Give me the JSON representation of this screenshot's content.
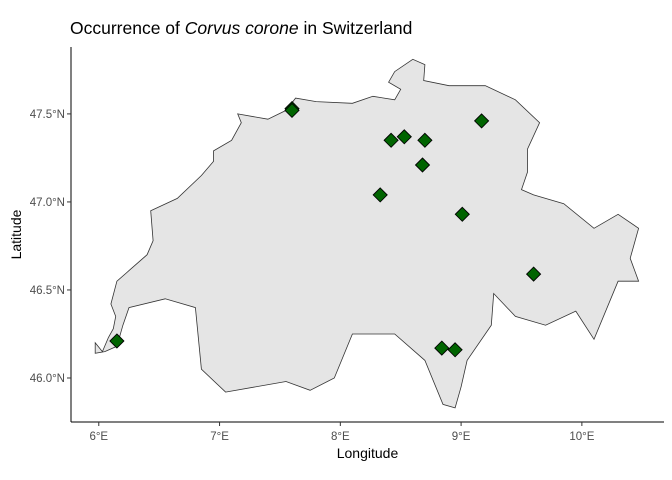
{
  "chart_data": {
    "type": "scatter",
    "title": {
      "prefix": "Occurrence of ",
      "species": "Corvus corone",
      "suffix": " in Switzerland"
    },
    "xlabel": "Longitude",
    "ylabel": "Latitude",
    "xlim": [
      5.77,
      10.68
    ],
    "ylim": [
      45.75,
      47.88
    ],
    "x_ticks": [
      {
        "value": 6,
        "label": "6°E"
      },
      {
        "value": 7,
        "label": "7°E"
      },
      {
        "value": 8,
        "label": "8°E"
      },
      {
        "value": 9,
        "label": "9°E"
      },
      {
        "value": 10,
        "label": "10°E"
      }
    ],
    "y_ticks": [
      {
        "value": 46.0,
        "label": "46.0°N"
      },
      {
        "value": 46.5,
        "label": "46.5°N"
      },
      {
        "value": 47.0,
        "label": "47.0°N"
      },
      {
        "value": 47.5,
        "label": "47.5°N"
      }
    ],
    "grid": false,
    "marker": {
      "shape": "diamond",
      "fill": "#006400",
      "stroke": "#000000"
    },
    "region_fill": "#e5e5e5",
    "region_stroke": "#333333",
    "points": [
      {
        "lon": 6.15,
        "lat": 46.21
      },
      {
        "lon": 7.6,
        "lat": 47.53
      },
      {
        "lon": 7.6,
        "lat": 47.52
      },
      {
        "lon": 8.42,
        "lat": 47.35
      },
      {
        "lon": 8.53,
        "lat": 47.37
      },
      {
        "lon": 8.7,
        "lat": 47.35
      },
      {
        "lon": 8.68,
        "lat": 47.21
      },
      {
        "lon": 9.17,
        "lat": 47.46
      },
      {
        "lon": 8.33,
        "lat": 47.04
      },
      {
        "lon": 9.01,
        "lat": 46.93
      },
      {
        "lon": 9.6,
        "lat": 46.59
      },
      {
        "lon": 8.84,
        "lat": 46.17
      },
      {
        "lon": 8.95,
        "lat": 46.16
      }
    ],
    "border": [
      [
        6.03,
        46.15
      ],
      [
        6.08,
        46.23
      ],
      [
        6.12,
        46.28
      ],
      [
        6.14,
        46.35
      ],
      [
        6.1,
        46.42
      ],
      [
        6.15,
        46.55
      ],
      [
        6.25,
        46.61
      ],
      [
        6.4,
        46.7
      ],
      [
        6.45,
        46.78
      ],
      [
        6.43,
        46.95
      ],
      [
        6.65,
        47.02
      ],
      [
        6.85,
        47.15
      ],
      [
        6.95,
        47.23
      ],
      [
        6.95,
        47.29
      ],
      [
        7.1,
        47.35
      ],
      [
        7.18,
        47.45
      ],
      [
        7.15,
        47.5
      ],
      [
        7.4,
        47.47
      ],
      [
        7.55,
        47.52
      ],
      [
        7.63,
        47.59
      ],
      [
        7.8,
        47.57
      ],
      [
        8.1,
        47.56
      ],
      [
        8.27,
        47.6
      ],
      [
        8.45,
        47.58
      ],
      [
        8.5,
        47.64
      ],
      [
        8.4,
        47.68
      ],
      [
        8.45,
        47.74
      ],
      [
        8.6,
        47.81
      ],
      [
        8.7,
        47.78
      ],
      [
        8.69,
        47.69
      ],
      [
        8.9,
        47.66
      ],
      [
        9.2,
        47.66
      ],
      [
        9.45,
        47.58
      ],
      [
        9.65,
        47.45
      ],
      [
        9.55,
        47.3
      ],
      [
        9.55,
        47.17
      ],
      [
        9.5,
        47.07
      ],
      [
        9.6,
        47.04
      ],
      [
        9.85,
        46.99
      ],
      [
        10.1,
        46.85
      ],
      [
        10.3,
        46.93
      ],
      [
        10.47,
        46.85
      ],
      [
        10.4,
        46.68
      ],
      [
        10.47,
        46.55
      ],
      [
        10.3,
        46.55
      ],
      [
        10.1,
        46.22
      ],
      [
        9.95,
        46.38
      ],
      [
        9.7,
        46.3
      ],
      [
        9.45,
        46.35
      ],
      [
        9.27,
        46.48
      ],
      [
        9.25,
        46.3
      ],
      [
        9.05,
        46.1
      ],
      [
        9.0,
        45.95
      ],
      [
        8.95,
        45.83
      ],
      [
        8.85,
        45.85
      ],
      [
        8.7,
        46.1
      ],
      [
        8.45,
        46.25
      ],
      [
        8.1,
        46.25
      ],
      [
        7.95,
        46.0
      ],
      [
        7.75,
        45.93
      ],
      [
        7.55,
        45.98
      ],
      [
        7.05,
        45.92
      ],
      [
        6.85,
        46.05
      ],
      [
        6.8,
        46.4
      ],
      [
        6.55,
        46.45
      ],
      [
        6.25,
        46.4
      ],
      [
        6.2,
        46.3
      ],
      [
        6.15,
        46.18
      ],
      [
        6.05,
        46.15
      ],
      [
        5.97,
        46.14
      ],
      [
        5.97,
        46.2
      ],
      [
        6.03,
        46.15
      ]
    ]
  }
}
